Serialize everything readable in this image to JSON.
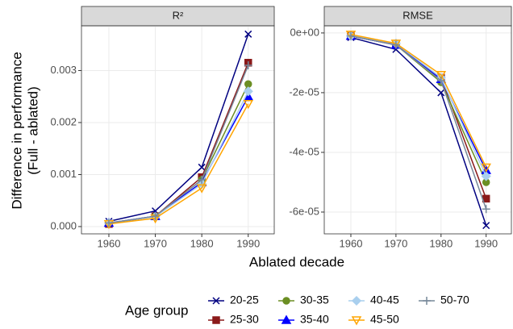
{
  "chart_data": {
    "type": "line",
    "xlabel": "Ablated decade",
    "ylabel": [
      "Difference in performance",
      "(Full - ablated)"
    ],
    "legend_title": "Age group",
    "grid": true,
    "x": [
      1960,
      1970,
      1980,
      1990
    ],
    "xlim": [
      1954.1,
      1995.6
    ],
    "xticks": [
      1960,
      1970,
      1980,
      1990
    ],
    "series": [
      {
        "name": "20-25",
        "color": "#000080",
        "marker": "x"
      },
      {
        "name": "25-30",
        "color": "#8b1a1a",
        "marker": "square"
      },
      {
        "name": "30-35",
        "color": "#6b8e23",
        "marker": "circle"
      },
      {
        "name": "35-40",
        "color": "#0000ff",
        "marker": "triangle"
      },
      {
        "name": "40-45",
        "color": "#a9cfee",
        "marker": "diamond"
      },
      {
        "name": "45-50",
        "color": "#ffa500",
        "marker": "down-triangle"
      },
      {
        "name": "50-70",
        "color": "#778899",
        "marker": "plus"
      }
    ],
    "facets": [
      {
        "title": "R²",
        "ylim": [
          -0.00014,
          0.00386
        ],
        "yticks": [
          {
            "value": 0,
            "label": "0.000"
          },
          {
            "value": 0.001,
            "label": "0.001"
          },
          {
            "value": 0.002,
            "label": "0.002"
          },
          {
            "value": 0.003,
            "label": "0.003"
          }
        ],
        "values": [
          [
            0.0001,
            0.0003,
            0.00114,
            0.0037
          ],
          [
            5e-05,
            0.0002,
            0.00095,
            0.00315
          ],
          [
            6e-05,
            0.0002,
            0.0009,
            0.00274
          ],
          [
            7e-05,
            0.0002,
            0.00085,
            0.0025
          ],
          [
            7e-05,
            0.00019,
            0.00082,
            0.0026
          ],
          [
            5e-05,
            0.00016,
            0.00074,
            0.00236
          ],
          [
            7e-05,
            0.0002,
            0.0009,
            0.0031
          ]
        ]
      },
      {
        "title": "RMSE",
        "ylim": [
          -6.73e-05,
          2.4e-06
        ],
        "yticks": [
          {
            "value": 0,
            "label": "0e+00"
          },
          {
            "value": -2e-05,
            "label": "-2e-05"
          },
          {
            "value": -4e-05,
            "label": "-4e-05"
          },
          {
            "value": -6e-05,
            "label": "-6e-05"
          }
        ],
        "values": [
          [
            -1.5e-06,
            -5.5e-06,
            -2e-05,
            -6.45e-05
          ],
          [
            -1e-06,
            -4e-06,
            -1.5e-05,
            -5.55e-05
          ],
          [
            -1e-06,
            -4e-06,
            -1.65e-05,
            -5e-05
          ],
          [
            -1e-06,
            -4e-06,
            -1.55e-05,
            -4.6e-05
          ],
          [
            -1e-06,
            -3.5e-06,
            -1.5e-05,
            -4.8e-05
          ],
          [
            -5e-07,
            -3.5e-06,
            -1.4e-05,
            -4.5e-05
          ],
          [
            -1e-06,
            -4e-06,
            -1.6e-05,
            -5.9e-05
          ]
        ]
      }
    ]
  }
}
